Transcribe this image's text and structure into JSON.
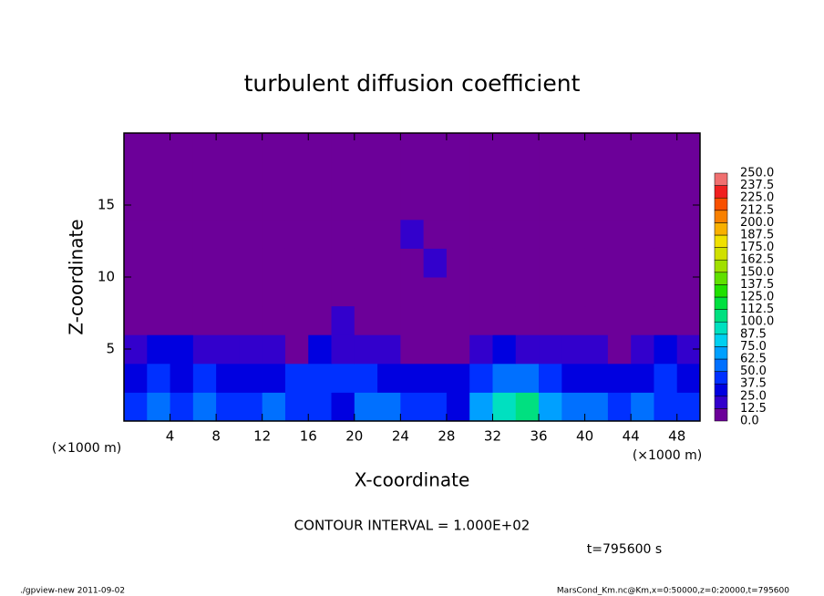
{
  "chart_data": {
    "type": "heatmap",
    "title": "turbulent diffusion coefficient",
    "x_label": "X-coordinate",
    "y_label": "Z-coordinate",
    "x_unit": "(×1000 m)",
    "y_unit": "(×1000 m)",
    "xlim": [
      0,
      50
    ],
    "ylim": [
      0,
      20
    ],
    "xticks": [
      4,
      8,
      12,
      16,
      20,
      24,
      28,
      32,
      36,
      40,
      44,
      48
    ],
    "yticks": [
      5,
      10,
      15
    ],
    "x": [
      1,
      3,
      5,
      7,
      9,
      11,
      13,
      15,
      17,
      19,
      21,
      23,
      25,
      27,
      29,
      31,
      33,
      35,
      37,
      39,
      41,
      43,
      45,
      47,
      49
    ],
    "y": [
      1,
      3,
      5,
      7,
      9,
      11,
      13,
      15,
      17,
      19
    ],
    "z": [
      [
        45,
        55,
        40,
        50,
        45,
        40,
        50,
        45,
        40,
        35,
        55,
        50,
        45,
        40,
        35,
        70,
        95,
        105,
        70,
        55,
        50,
        45,
        50,
        45,
        40
      ],
      [
        35,
        40,
        30,
        40,
        35,
        30,
        35,
        40,
        45,
        40,
        40,
        35,
        30,
        30,
        30,
        45,
        60,
        55,
        40,
        35,
        30,
        30,
        35,
        40,
        35
      ],
      [
        20,
        25,
        25,
        20,
        20,
        15,
        15,
        12,
        25,
        20,
        15,
        15,
        10,
        8,
        5,
        15,
        25,
        20,
        20,
        20,
        15,
        10,
        20,
        25,
        15
      ],
      [
        8,
        3,
        0,
        0,
        0,
        3,
        2,
        0,
        10,
        15,
        3,
        0,
        0,
        0,
        0,
        0,
        2,
        0,
        0,
        0,
        0,
        0,
        5,
        10,
        0
      ],
      [
        0,
        0,
        0,
        0,
        0,
        0,
        0,
        0,
        0,
        0,
        0,
        0,
        0,
        0,
        0,
        0,
        0,
        0,
        0,
        0,
        0,
        0,
        0,
        0,
        0
      ],
      [
        0,
        0,
        0,
        0,
        0,
        0,
        0,
        0,
        0,
        0,
        0,
        0,
        0,
        15,
        0,
        5,
        0,
        0,
        0,
        0,
        0,
        0,
        0,
        0,
        0
      ],
      [
        0,
        0,
        0,
        0,
        0,
        0,
        0,
        0,
        0,
        0,
        0,
        0,
        15,
        0,
        0,
        8,
        0,
        10,
        0,
        0,
        0,
        0,
        0,
        0,
        0
      ],
      [
        0,
        0,
        0,
        0,
        0,
        0,
        0,
        0,
        0,
        0,
        0,
        0,
        0,
        0,
        0,
        0,
        0,
        0,
        0,
        0,
        0,
        5,
        8,
        5,
        0
      ],
      [
        0,
        0,
        0,
        0,
        0,
        0,
        0,
        0,
        0,
        0,
        0,
        0,
        0,
        0,
        0,
        0,
        0,
        0,
        0,
        0,
        0,
        0,
        0,
        0,
        0
      ],
      [
        0,
        0,
        0,
        0,
        0,
        0,
        0,
        0,
        0,
        0,
        0,
        0,
        0,
        0,
        0,
        0,
        0,
        0,
        0,
        0,
        0,
        0,
        0,
        0,
        0
      ]
    ],
    "colorbar": {
      "ticks": [
        {
          "value": 0,
          "label": "0.0"
        },
        {
          "value": 12.5,
          "label": "12.5"
        },
        {
          "value": 25,
          "label": "25.0"
        },
        {
          "value": 37.5,
          "label": "37.5"
        },
        {
          "value": 50,
          "label": "50.0"
        },
        {
          "value": 62.5,
          "label": "62.5"
        },
        {
          "value": 75,
          "label": "75.0"
        },
        {
          "value": 87.5,
          "label": "87.5"
        },
        {
          "value": 100,
          "label": "100.0"
        },
        {
          "value": 112.5,
          "label": "112.5"
        },
        {
          "value": 125,
          "label": "125.0"
        },
        {
          "value": 137.5,
          "label": "137.5"
        },
        {
          "value": 150,
          "label": "150.0"
        },
        {
          "value": 162.5,
          "label": "162.5"
        },
        {
          "value": 175,
          "label": "175.0"
        },
        {
          "value": 187.5,
          "label": "187.5"
        },
        {
          "value": 200,
          "label": "200.0"
        },
        {
          "value": 212.5,
          "label": "212.5"
        },
        {
          "value": 225,
          "label": "225.0"
        },
        {
          "value": 237.5,
          "label": "237.5"
        },
        {
          "value": 250,
          "label": "250.0"
        }
      ],
      "colors": [
        "#6c0099",
        "#3300cc",
        "#0000e0",
        "#0030ff",
        "#0070ff",
        "#00a0ff",
        "#00d0f0",
        "#00e0c0",
        "#00e080",
        "#00e040",
        "#20e000",
        "#60e000",
        "#a0e000",
        "#d0e000",
        "#f0e000",
        "#f8b000",
        "#f88000",
        "#f85000",
        "#f02020",
        "#f07070"
      ]
    },
    "contour_note": "CONTOUR INTERVAL = 1.000E+02",
    "time_note": "t=795600 s",
    "footer_left": "./gpview-new   2011-09-02",
    "footer_right": "MarsCond_Km.nc@Km,x=0:50000,z=0:20000,t=795600"
  }
}
